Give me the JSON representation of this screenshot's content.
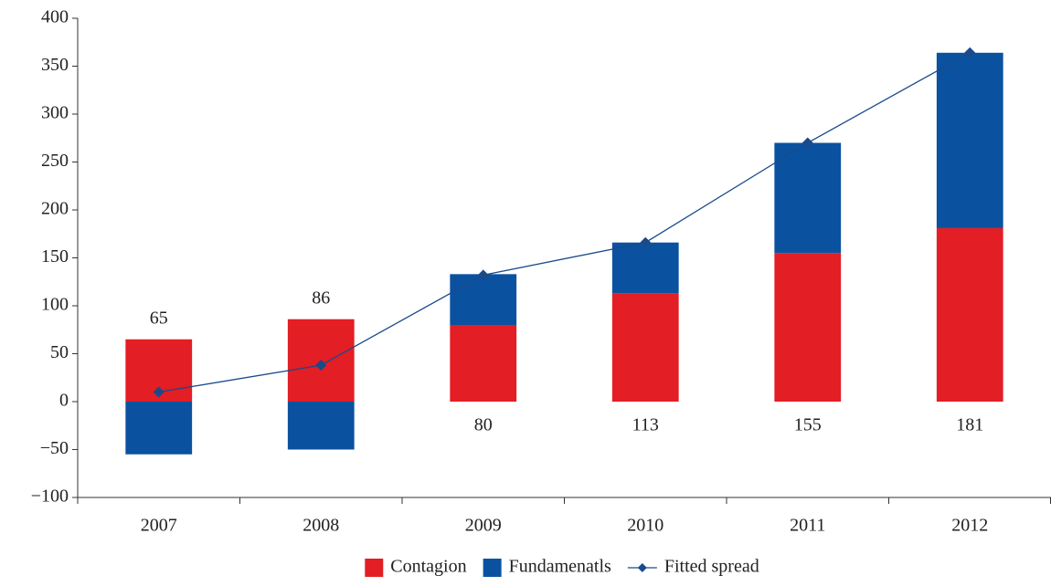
{
  "chart_data": {
    "type": "bar",
    "stacked": true,
    "categories": [
      "2007",
      "2008",
      "2009",
      "2010",
      "2011",
      "2012"
    ],
    "series": [
      {
        "name": "Contagion",
        "color": "#e31e24",
        "type": "bar",
        "values": [
          65,
          86,
          80,
          113,
          155,
          181
        ]
      },
      {
        "name": "Fundamenatls",
        "color": "#0a52a0",
        "type": "bar",
        "values": [
          -55,
          -50,
          53,
          53,
          115,
          183
        ]
      },
      {
        "name": "Fitted spread",
        "color": "#1a4a8a",
        "type": "line",
        "values": [
          10,
          38,
          132,
          166,
          270,
          364
        ]
      }
    ],
    "data_labels_series": 0,
    "ylim": [
      -100,
      400
    ],
    "yticks": [
      {
        "value": -100,
        "label": "−100"
      },
      {
        "value": -50,
        "label": "−50"
      },
      0,
      50,
      100,
      150,
      200,
      250,
      300,
      350,
      400
    ],
    "grid": false,
    "legend": "bottom"
  }
}
